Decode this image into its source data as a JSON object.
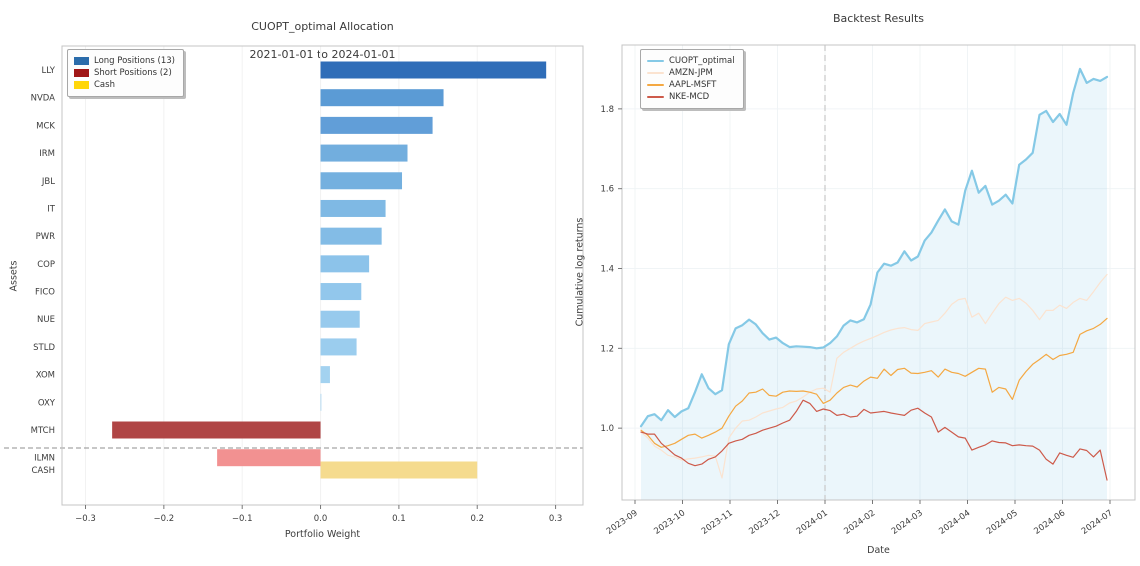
{
  "figure": {
    "background": "#ffffff"
  },
  "chart_data": [
    {
      "type": "bar",
      "orientation": "horizontal",
      "title": "CUOPT_optimal Allocation",
      "subtitle": "2021-01-01 to 2024-01-01",
      "xlabel": "Portfolio Weight",
      "ylabel": "Assets",
      "xlim": [
        -0.33,
        0.335
      ],
      "x_ticks": [
        -0.3,
        -0.2,
        -0.1,
        0.0,
        0.1,
        0.2,
        0.3
      ],
      "x_tick_labels": [
        "−0.3",
        "−0.2",
        "−0.1",
        "0.0",
        "0.1",
        "0.2",
        "0.3"
      ],
      "grid": true,
      "legend_position": "upper left",
      "legend": [
        {
          "label": "Long Positions (13)",
          "color": "#2b6cab"
        },
        {
          "label": "Short Positions (2)",
          "color": "#a01616"
        },
        {
          "label": "Cash",
          "color": "#ffd60a"
        }
      ],
      "separator_after": "ILMN",
      "bars": [
        {
          "asset": "LLY",
          "weight": 0.288,
          "group": "long",
          "color": "#2f6db8"
        },
        {
          "asset": "NVDA",
          "weight": 0.157,
          "group": "long",
          "color": "#5b9bd5"
        },
        {
          "asset": "MCK",
          "weight": 0.143,
          "group": "long",
          "color": "#619ed8"
        },
        {
          "asset": "IRM",
          "weight": 0.111,
          "group": "long",
          "color": "#72aede"
        },
        {
          "asset": "JBL",
          "weight": 0.104,
          "group": "long",
          "color": "#74b0df"
        },
        {
          "asset": "IT",
          "weight": 0.083,
          "group": "long",
          "color": "#7fb9e4"
        },
        {
          "asset": "PWR",
          "weight": 0.078,
          "group": "long",
          "color": "#83bce6"
        },
        {
          "asset": "COP",
          "weight": 0.062,
          "group": "long",
          "color": "#8cc3ea"
        },
        {
          "asset": "FICO",
          "weight": 0.052,
          "group": "long",
          "color": "#92c7ec"
        },
        {
          "asset": "NUE",
          "weight": 0.05,
          "group": "long",
          "color": "#97caed"
        },
        {
          "asset": "STLD",
          "weight": 0.046,
          "group": "long",
          "color": "#9bcdee"
        },
        {
          "asset": "XOM",
          "weight": 0.012,
          "group": "long",
          "color": "#a3d2f0"
        },
        {
          "asset": "OXY",
          "weight": 0.001,
          "group": "long",
          "color": "#a8d5f2"
        },
        {
          "asset": "MTCH",
          "weight": -0.266,
          "group": "short",
          "color": "#b04545"
        },
        {
          "asset": "ILMN",
          "weight": -0.132,
          "group": "short",
          "color": "#f29191"
        },
        {
          "asset": "CASH",
          "weight": 0.2,
          "group": "cash",
          "color": "#f5db8e"
        }
      ]
    },
    {
      "type": "line",
      "title": "Backtest Results",
      "xlabel": "Date",
      "ylabel": "Cumulative log returns",
      "x_range": [
        "2023-09-05",
        "2024-07-01"
      ],
      "x_tick_labels": [
        "2023-09",
        "2023-10",
        "2023-11",
        "2023-12",
        "2024-01",
        "2024-02",
        "2024-03",
        "2024-04",
        "2024-05",
        "2024-06",
        "2024-07"
      ],
      "y_ticks": [
        1.0,
        1.2,
        1.4,
        1.6,
        1.8
      ],
      "y_tick_labels": [
        "1.0",
        "1.2",
        "1.4",
        "1.6",
        "1.8"
      ],
      "ylim": [
        0.82,
        1.96
      ],
      "grid": true,
      "dashed_vline": "2024-01",
      "legend_position": "upper left",
      "series": [
        {
          "name": "CUOPT_optimal",
          "color": "#85c9e6",
          "line_width": 2.2,
          "fill_below": true,
          "fill_color": "rgba(133,201,230,0.16)",
          "values": [
            1.005,
            1.03,
            1.035,
            1.02,
            1.045,
            1.028,
            1.042,
            1.05,
            1.09,
            1.135,
            1.1,
            1.085,
            1.095,
            1.21,
            1.25,
            1.258,
            1.272,
            1.26,
            1.238,
            1.222,
            1.227,
            1.213,
            1.203,
            1.205,
            1.204,
            1.203,
            1.2,
            1.202,
            1.213,
            1.23,
            1.257,
            1.27,
            1.265,
            1.273,
            1.31,
            1.39,
            1.412,
            1.407,
            1.415,
            1.443,
            1.42,
            1.43,
            1.47,
            1.49,
            1.52,
            1.548,
            1.518,
            1.51,
            1.595,
            1.645,
            1.59,
            1.607,
            1.56,
            1.57,
            1.585,
            1.563,
            1.66,
            1.673,
            1.69,
            1.785,
            1.795,
            1.767,
            1.787,
            1.76,
            1.84,
            1.9,
            1.865,
            1.875,
            1.87,
            1.88
          ]
        },
        {
          "name": "AMZN-JPM",
          "color": "#fbe3d0",
          "line_width": 1.2,
          "fill_below": false,
          "values": [
            0.99,
            0.975,
            0.955,
            0.945,
            0.932,
            0.928,
            0.92,
            0.923,
            0.925,
            0.928,
            0.932,
            0.93,
            0.875,
            0.975,
            1.0,
            1.018,
            1.02,
            1.028,
            1.038,
            1.043,
            1.048,
            1.052,
            1.063,
            1.068,
            1.078,
            1.09,
            1.098,
            1.1,
            1.09,
            1.175,
            1.19,
            1.2,
            1.21,
            1.218,
            1.225,
            1.232,
            1.24,
            1.246,
            1.25,
            1.252,
            1.247,
            1.245,
            1.262,
            1.266,
            1.27,
            1.288,
            1.31,
            1.322,
            1.325,
            1.278,
            1.288,
            1.262,
            1.288,
            1.312,
            1.328,
            1.32,
            1.325,
            1.313,
            1.295,
            1.272,
            1.295,
            1.295,
            1.308,
            1.3,
            1.315,
            1.325,
            1.32,
            1.342,
            1.365,
            1.385
          ]
        },
        {
          "name": "AAPL-MSFT",
          "color": "#f4a842",
          "line_width": 1.2,
          "fill_below": false,
          "values": [
            0.995,
            0.982,
            0.962,
            0.952,
            0.956,
            0.962,
            0.972,
            0.982,
            0.985,
            0.975,
            0.982,
            0.99,
            1.0,
            1.03,
            1.055,
            1.068,
            1.088,
            1.09,
            1.098,
            1.082,
            1.08,
            1.09,
            1.093,
            1.092,
            1.093,
            1.09,
            1.085,
            1.062,
            1.07,
            1.088,
            1.102,
            1.108,
            1.103,
            1.118,
            1.128,
            1.125,
            1.148,
            1.132,
            1.147,
            1.15,
            1.138,
            1.137,
            1.14,
            1.144,
            1.128,
            1.148,
            1.14,
            1.137,
            1.13,
            1.14,
            1.15,
            1.148,
            1.09,
            1.102,
            1.098,
            1.072,
            1.12,
            1.142,
            1.16,
            1.172,
            1.185,
            1.172,
            1.182,
            1.185,
            1.19,
            1.235,
            1.244,
            1.25,
            1.26,
            1.275
          ]
        },
        {
          "name": "NKE-MCD",
          "color": "#cd5a4a",
          "line_width": 1.2,
          "fill_below": false,
          "values": [
            0.99,
            0.985,
            0.985,
            0.962,
            0.948,
            0.933,
            0.925,
            0.912,
            0.906,
            0.91,
            0.922,
            0.928,
            0.943,
            0.962,
            0.968,
            0.972,
            0.982,
            0.987,
            0.995,
            1.0,
            1.005,
            1.013,
            1.02,
            1.042,
            1.07,
            1.062,
            1.042,
            1.048,
            1.044,
            1.032,
            1.035,
            1.028,
            1.03,
            1.047,
            1.038,
            1.04,
            1.042,
            1.038,
            1.035,
            1.032,
            1.045,
            1.05,
            1.038,
            1.028,
            0.99,
            1.002,
            0.99,
            0.978,
            0.975,
            0.945,
            0.952,
            0.958,
            0.968,
            0.964,
            0.963,
            0.956,
            0.958,
            0.956,
            0.955,
            0.945,
            0.922,
            0.91,
            0.938,
            0.932,
            0.927,
            0.948,
            0.944,
            0.928,
            0.945,
            0.87
          ]
        }
      ]
    }
  ]
}
